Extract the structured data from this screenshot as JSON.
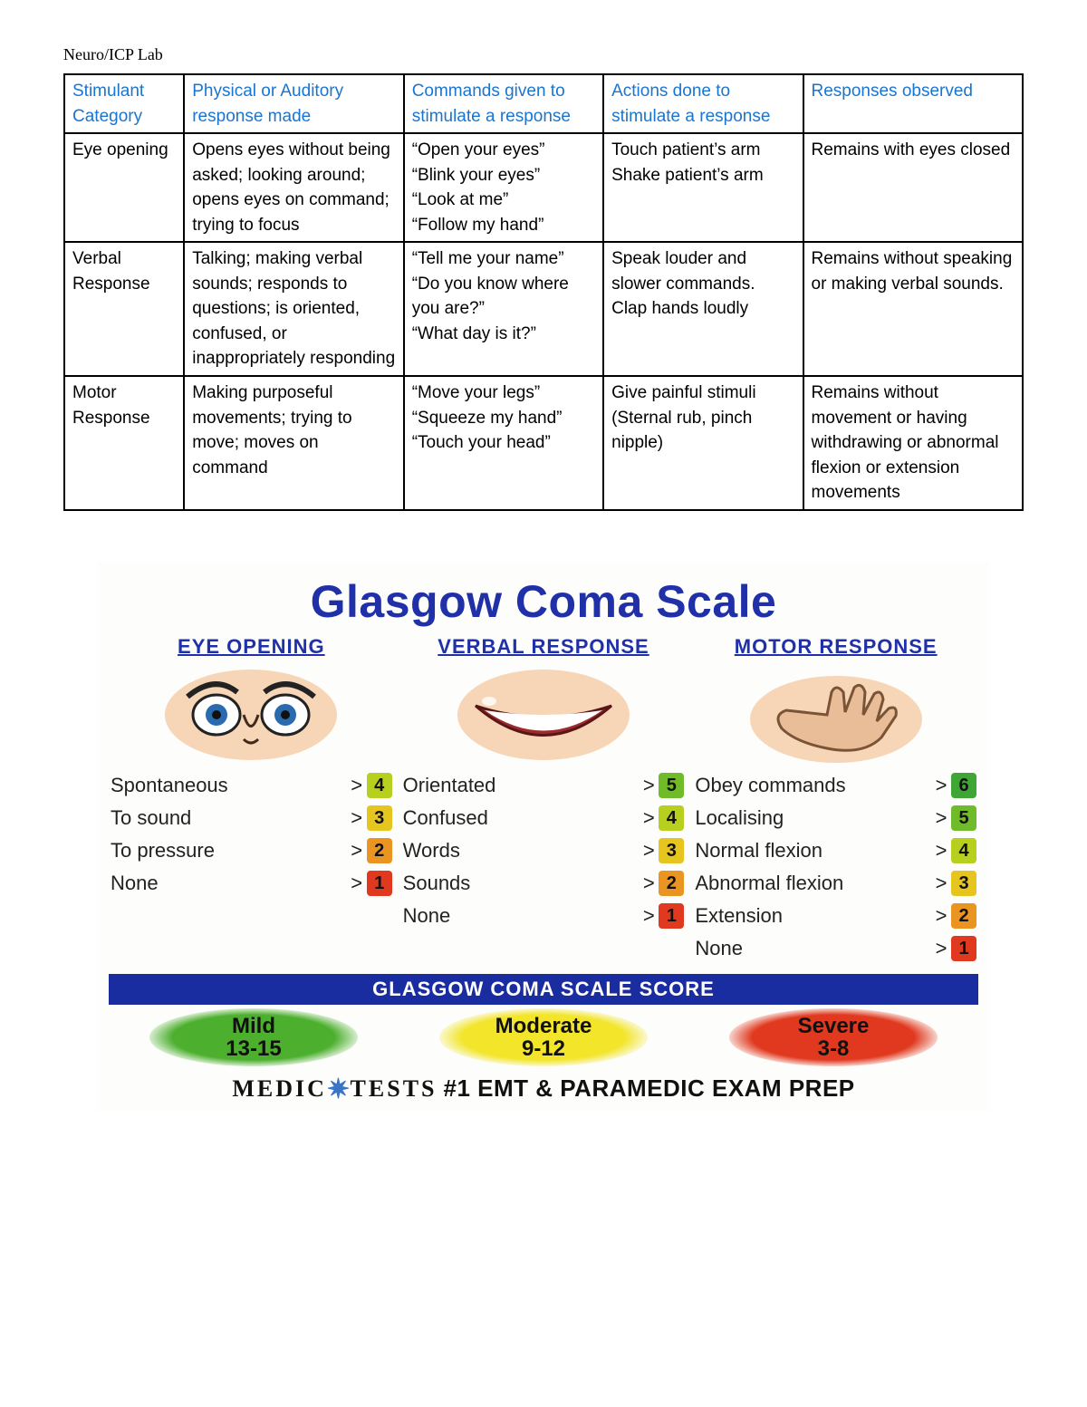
{
  "doc": {
    "title": "Neuro/ICP Lab"
  },
  "stim_table": {
    "headers": [
      "Stimulant Category",
      "Physical or Auditory response made",
      "Commands given to stimulate a response",
      "Actions done to stimulate a response",
      "Responses observed"
    ],
    "col_widths_pct": [
      12,
      22,
      20,
      20,
      22
    ],
    "header_color": "#1a75d1",
    "rows": [
      {
        "category": "Eye opening",
        "physical": "Opens eyes without being asked; looking around; opens eyes on command; trying to focus",
        "commands": "“Open your eyes”\n“Blink your eyes”\n“Look at me”\n“Follow my hand”",
        "actions": "Touch patient’s arm\nShake patient’s arm",
        "responses": "Remains with eyes closed"
      },
      {
        "category": "Verbal Response",
        "physical": "Talking; making verbal sounds; responds to questions; is oriented, confused, or inappropriately responding",
        "commands": "“Tell me your name”\n“Do you know where you are?”\n“What day is it?”",
        "actions": "Speak louder and slower commands. Clap hands loudly",
        "responses": "Remains without speaking or making verbal sounds."
      },
      {
        "category": "Motor Response",
        "physical": "Making purposeful movements; trying to move; moves on command",
        "commands": "“Move your legs”\n“Squeeze my hand”\n“Touch your head”",
        "actions": "Give painful stimuli\n(Sternal rub, pinch nipple)",
        "responses": "Remains without movement or having withdrawing or abnormal flexion or extension movements"
      }
    ]
  },
  "gcs": {
    "title": "Glasgow Coma Scale",
    "title_color": "#2030a8",
    "header_bg": "#1a2da0",
    "score_colors": {
      "6": "#3fa535",
      "5": "#6fbb2a",
      "4": "#b7cf1f",
      "3": "#e6c51e",
      "2": "#ea9421",
      "1": "#e0391f"
    },
    "columns": [
      {
        "heading": "EYE OPENING",
        "illustration": "eyes",
        "items": [
          {
            "label": "Spontaneous",
            "score": 4
          },
          {
            "label": "To sound",
            "score": 3
          },
          {
            "label": "To pressure",
            "score": 2
          },
          {
            "label": "None",
            "score": 1
          }
        ]
      },
      {
        "heading": "VERBAL RESPONSE",
        "illustration": "mouth",
        "items": [
          {
            "label": "Orientated",
            "score": 5
          },
          {
            "label": "Confused",
            "score": 4
          },
          {
            "label": "Words",
            "score": 3
          },
          {
            "label": "Sounds",
            "score": 2
          },
          {
            "label": "None",
            "score": 1
          }
        ]
      },
      {
        "heading": "MOTOR RESPONSE",
        "illustration": "hand",
        "items": [
          {
            "label": "Obey commands",
            "score": 6
          },
          {
            "label": "Localising",
            "score": 5
          },
          {
            "label": "Normal flexion",
            "score": 4
          },
          {
            "label": "Abnormal flexion",
            "score": 3
          },
          {
            "label": "Extension",
            "score": 2
          },
          {
            "label": "None",
            "score": 1
          }
        ]
      }
    ],
    "score_header": "GLASGOW COMA SCALE SCORE",
    "severity": [
      {
        "label": "Mild",
        "range": "13-15",
        "color": "#4caf2e"
      },
      {
        "label": "Moderate",
        "range": "9-12",
        "color": "#f2e52a"
      },
      {
        "label": "Severe",
        "range": "3-8",
        "color": "#e0391f"
      }
    ],
    "footer": {
      "brand1": "MEDIC",
      "brand2": "TESTS",
      "tagline": "#1 EMT & PARAMEDIC EXAM PREP"
    }
  }
}
